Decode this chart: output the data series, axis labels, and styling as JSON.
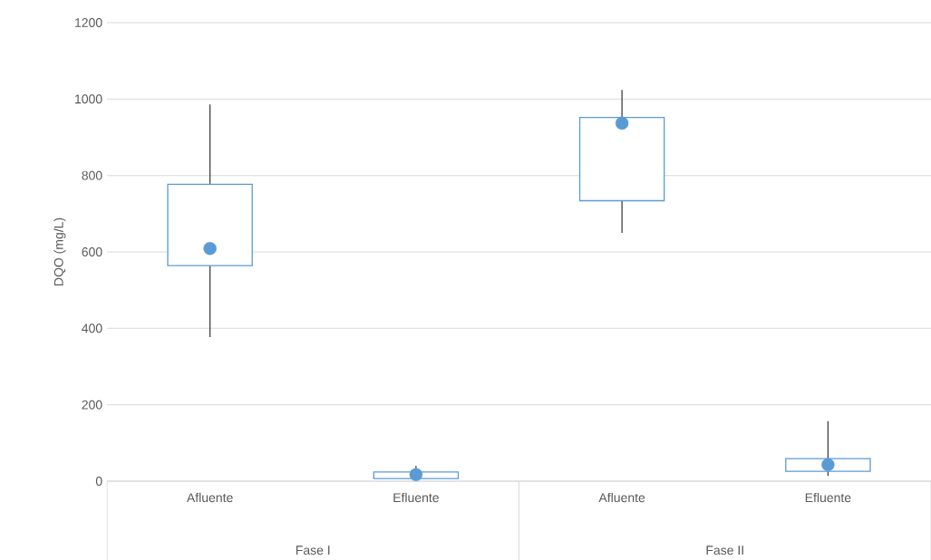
{
  "chart_data": {
    "type": "box",
    "ylabel": "DQO (mg/L)",
    "categories": [
      "Afluente",
      "Efluente",
      "Afluente",
      "Efluente"
    ],
    "boxes": [
      {
        "low": 377,
        "q1": 564,
        "median": 609,
        "q3": 777,
        "high": 986
      },
      {
        "low": 7,
        "q1": 7,
        "median": 17,
        "q3": 24,
        "high": 40
      },
      {
        "low": 650,
        "q1": 734,
        "median": 937,
        "q3": 952,
        "high": 1024
      },
      {
        "low": 14,
        "q1": 26,
        "median": 43,
        "q3": 59,
        "high": 157
      }
    ],
    "color": "#5b9bd5",
    "ylim": [
      0,
      1200
    ],
    "yticks": [
      0,
      200,
      400,
      600,
      800,
      1000,
      1200
    ],
    "grid": "y",
    "annotations": [
      "Fase I",
      "Fase II"
    ]
  }
}
